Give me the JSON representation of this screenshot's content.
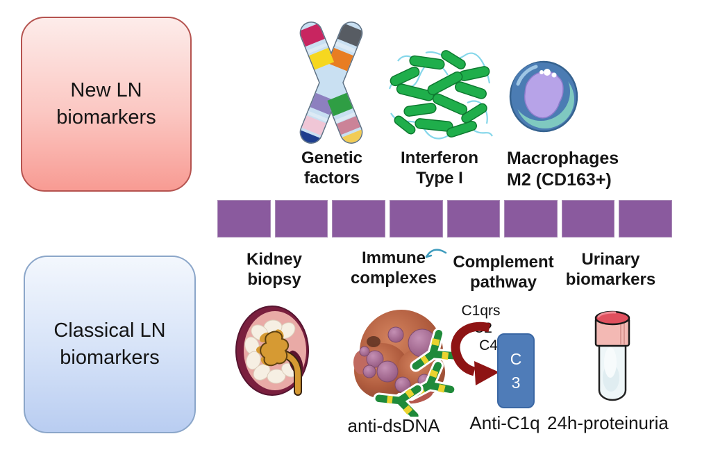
{
  "new_box": {
    "label": "New LN\nbiomarkers"
  },
  "classical_box": {
    "label": "Classical LN\nbiomarkers"
  },
  "new_items": [
    {
      "label": "Genetic\nfactors",
      "icon": "chromosome-icon"
    },
    {
      "label": "Interferon\nType I",
      "icon": "protein-structure-icon"
    },
    {
      "label": "Macrophages\nM2 (CD163+)",
      "icon": "macrophage-cell-icon"
    }
  ],
  "classical_items": [
    {
      "label": "Kidney\nbiopsy",
      "sublabel": "",
      "icon": "kidney-icon"
    },
    {
      "label": "Immune\ncomplexes",
      "sublabel": "anti-dsDNA",
      "icon": "immune-complex-icon"
    },
    {
      "label": "Complement\npathway",
      "sublabel": "Anti-C1q",
      "icon": "complement-arrow-icon"
    },
    {
      "label": "Urinary\nbiomarkers",
      "sublabel": "24h-proteinuria",
      "icon": "urine-tube-icon"
    }
  ],
  "complement": {
    "cascade": [
      "C1qrs",
      "C2",
      "C4"
    ],
    "c3_label": "C\n3"
  },
  "divider": {
    "segments": 8,
    "color": "#8a5a9e"
  },
  "colors": {
    "new_box_border": "#b5534f",
    "classical_box_border": "#8ba6c9",
    "divider": "#8a5a9e",
    "c3_box": "#4f7cb8",
    "complement_arrow": "#8e1414"
  }
}
